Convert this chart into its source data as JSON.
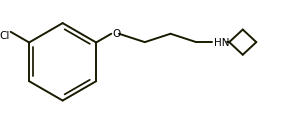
{
  "background_color": "#ffffff",
  "line_color": "#1a1a00",
  "text_color": "#000000",
  "label_hn": "HN",
  "label_o": "O",
  "label_cl": "Cl",
  "figsize": [
    2.92,
    1.15
  ],
  "dpi": 100,
  "linewidth": 1.4
}
